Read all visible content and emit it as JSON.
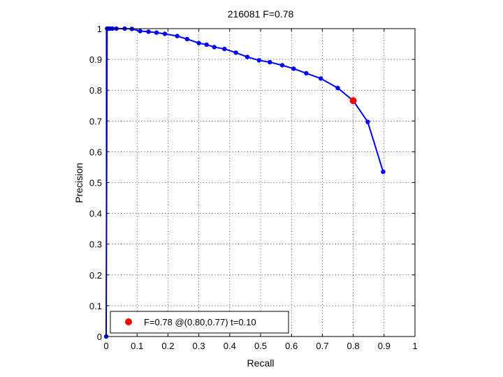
{
  "chart_data": {
    "type": "line",
    "title": "216081 F=0.78",
    "xlabel": "Recall",
    "ylabel": "Precision",
    "xlim": [
      0,
      1
    ],
    "ylim": [
      0,
      1
    ],
    "xticks": [
      "0",
      "0.1",
      "0.2",
      "0.3",
      "0.4",
      "0.5",
      "0.6",
      "0.7",
      "0.8",
      "0.9",
      "1"
    ],
    "yticks": [
      "0",
      "0.1",
      "0.2",
      "0.3",
      "0.4",
      "0.5",
      "0.6",
      "0.7",
      "0.8",
      "0.9",
      "1"
    ],
    "grid": true,
    "series": [
      {
        "color": "#0000ff",
        "marker": "dot",
        "x": [
          0.0,
          0.003,
          0.006,
          0.012,
          0.02,
          0.033,
          0.06,
          0.083,
          0.11,
          0.137,
          0.163,
          0.19,
          0.23,
          0.262,
          0.3,
          0.325,
          0.35,
          0.383,
          0.42,
          0.457,
          0.495,
          0.53,
          0.57,
          0.607,
          0.648,
          0.695,
          0.75,
          0.8,
          0.847,
          0.897
        ],
        "y": [
          0.0,
          1.0,
          1.0,
          1.0,
          1.0,
          1.0,
          1.0,
          0.999,
          0.992,
          0.99,
          0.987,
          0.983,
          0.976,
          0.966,
          0.953,
          0.948,
          0.94,
          0.934,
          0.922,
          0.908,
          0.897,
          0.891,
          0.881,
          0.87,
          0.855,
          0.838,
          0.807,
          0.766,
          0.697,
          0.535
        ]
      }
    ],
    "highlight": {
      "x": 0.8,
      "y": 0.766,
      "color": "#ff0000"
    },
    "legend": {
      "placement": "bottom-left",
      "label": "F=0.78 @(0.80,0.77) t=0.10"
    }
  }
}
